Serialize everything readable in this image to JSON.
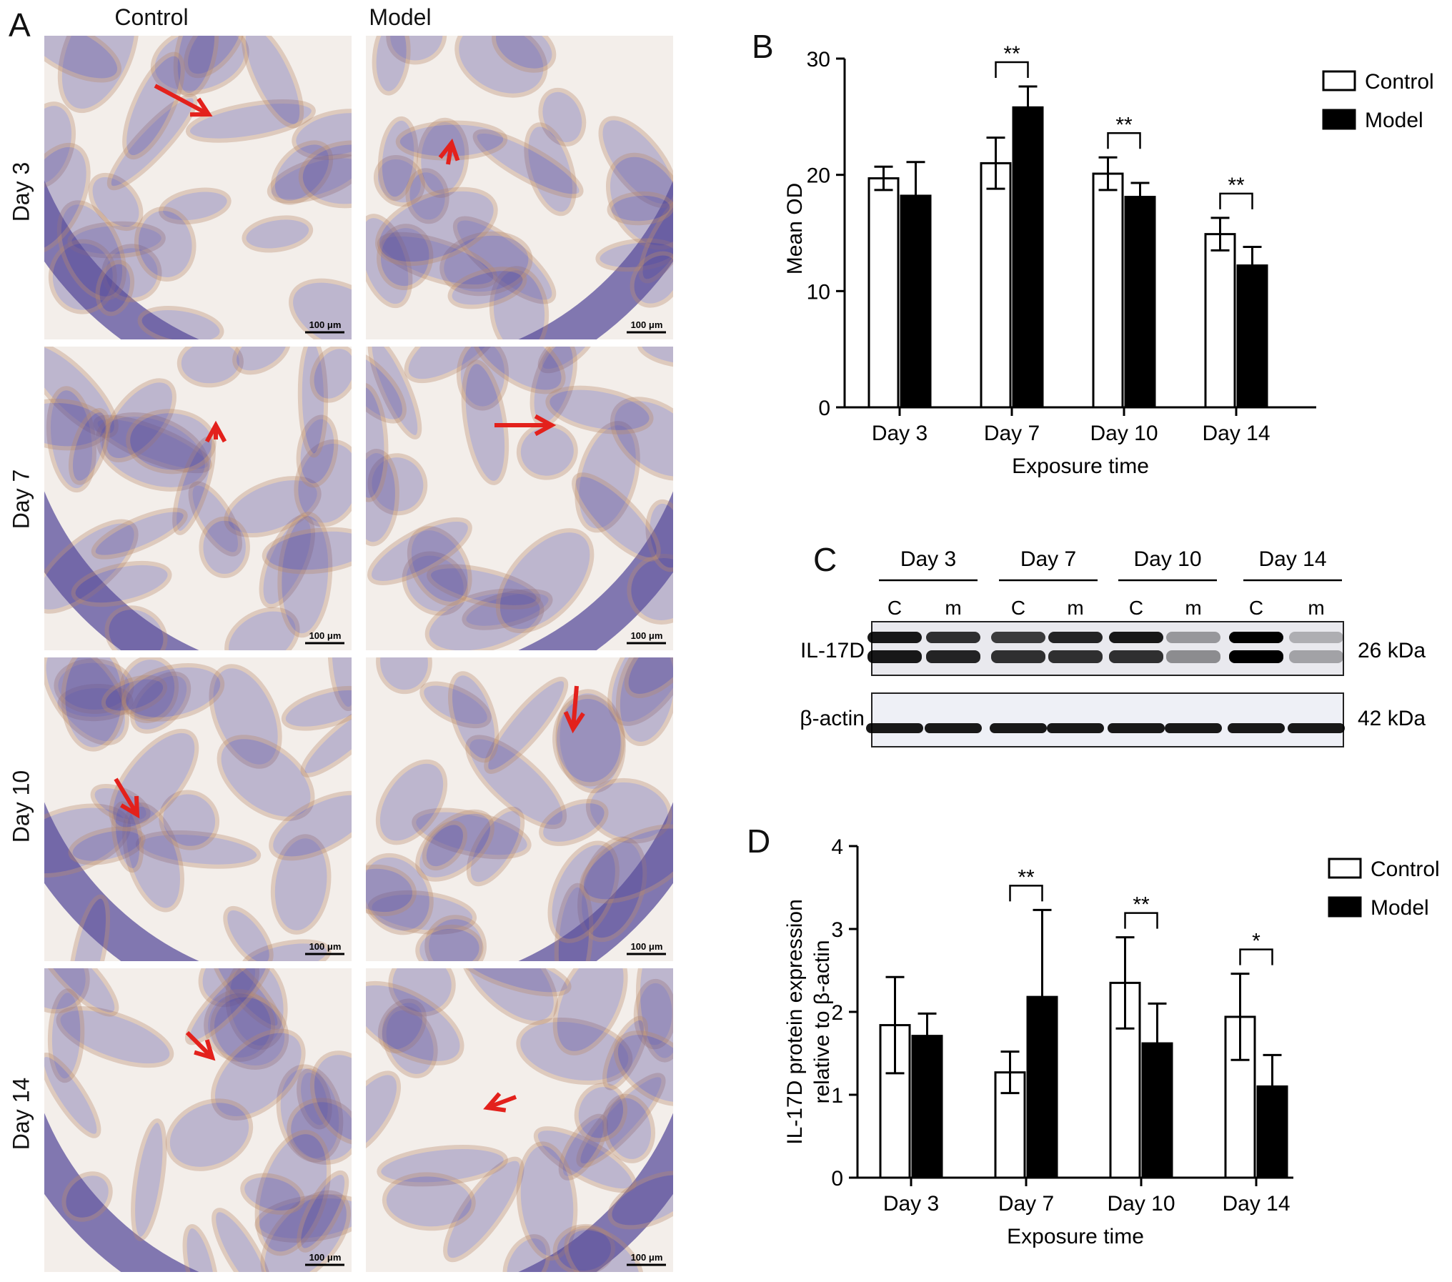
{
  "panels": {
    "a": {
      "letter": "A",
      "columns": [
        "Control",
        "Model"
      ],
      "rows": [
        "Day 3",
        "Day 7",
        "Day 10",
        "Day 14"
      ],
      "scale_bar": "100 μm",
      "arrow_color": "#e3211c",
      "tissue_colors": {
        "stain_brown": "#b88a6c",
        "hematoxylin": "#5b4f9c",
        "background": "#f3eeea"
      }
    },
    "b": {
      "letter": "B"
    },
    "c": {
      "letter": "C",
      "days": [
        "Day 3",
        "Day 7",
        "Day 10",
        "Day 14"
      ],
      "lanes": [
        "C",
        "m",
        "C",
        "m",
        "C",
        "m",
        "C",
        "m"
      ],
      "bands": [
        {
          "name": "IL-17D",
          "size": "26 kDa"
        },
        {
          "name": "β-actin",
          "size": "42 kDa"
        }
      ]
    },
    "d": {
      "letter": "D"
    }
  },
  "chart_data": [
    {
      "id": "B",
      "type": "bar",
      "categories": [
        "Day 3",
        "Day 7",
        "Day 10",
        "Day 14"
      ],
      "series": [
        {
          "name": "Control",
          "values": [
            19.7,
            21.0,
            20.1,
            14.9
          ],
          "errors": [
            1.0,
            2.2,
            1.4,
            1.4
          ],
          "color": "#ffffff"
        },
        {
          "name": "Model",
          "values": [
            18.2,
            25.8,
            18.1,
            12.2
          ],
          "errors": [
            2.9,
            1.8,
            1.2,
            1.6
          ],
          "color": "#000000"
        }
      ],
      "xlabel": "Exposure time",
      "ylabel": "Mean OD",
      "ylim": [
        0,
        30
      ],
      "yticks": [
        0,
        10,
        20,
        30
      ],
      "significance": [
        {
          "category": "Day 7",
          "label": "**"
        },
        {
          "category": "Day 10",
          "label": "**"
        },
        {
          "category": "Day 14",
          "label": "**"
        }
      ],
      "legend": "top-right",
      "grid": false
    },
    {
      "id": "D",
      "type": "bar",
      "categories": [
        "Day 3",
        "Day 7",
        "Day 10",
        "Day 14"
      ],
      "series": [
        {
          "name": "Control",
          "values": [
            1.84,
            1.27,
            2.35,
            1.94
          ],
          "errors": [
            0.58,
            0.25,
            0.55,
            0.52
          ],
          "color": "#ffffff"
        },
        {
          "name": "Model",
          "values": [
            1.71,
            2.18,
            1.62,
            1.1
          ],
          "errors": [
            0.27,
            1.05,
            0.48,
            0.38
          ],
          "color": "#000000"
        }
      ],
      "xlabel": "Exposure time",
      "ylabel": "IL-17D protein expression relative to β-actin",
      "ylabel_lines": [
        "IL-17D protein expression",
        "relative to β-actin"
      ],
      "ylim": [
        0,
        4
      ],
      "yticks": [
        0,
        1,
        2,
        3,
        4
      ],
      "significance": [
        {
          "category": "Day 7",
          "label": "**"
        },
        {
          "category": "Day 10",
          "label": "**"
        },
        {
          "category": "Day 14",
          "label": "*"
        }
      ],
      "legend": "top-right",
      "grid": false
    }
  ]
}
